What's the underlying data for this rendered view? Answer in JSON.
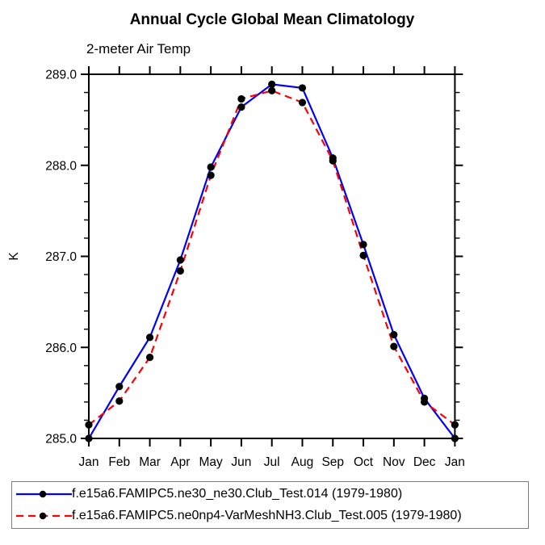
{
  "chart_data": {
    "type": "line",
    "title": "Annual Cycle Global Mean Climatology",
    "subtitle": "2-meter Air Temp",
    "ylabel": "K",
    "xlabel": "",
    "categories": [
      "Jan",
      "Feb",
      "Mar",
      "Apr",
      "May",
      "Jun",
      "Jul",
      "Aug",
      "Sep",
      "Oct",
      "Nov",
      "Dec",
      "Jan"
    ],
    "ylim": [
      285.0,
      289.0
    ],
    "ytick_interval": 1.0,
    "yminor_interval": 0.2,
    "ytick_labels": [
      "285.0",
      "286.0",
      "287.0",
      "288.0",
      "289.0"
    ],
    "grid": false,
    "legend_position": "bottom",
    "series": [
      {
        "name": "f.e15a6.FAMIPC5.ne30_ne30.Club_Test.014 (1979-1980)",
        "color": "#0000ff",
        "style": "solid",
        "marker": "circle",
        "marker_color": "#000000",
        "values": [
          285.0,
          285.57,
          286.11,
          286.96,
          287.98,
          288.64,
          288.89,
          288.85,
          288.08,
          287.13,
          286.14,
          285.44,
          285.0
        ]
      },
      {
        "name": "f.e15a6.FAMIPC5.ne0np4-VarMeshNH3.Club_Test.005 (1979-1980)",
        "color": "#ff0000",
        "style": "dashed",
        "marker": "circle",
        "marker_color": "#000000",
        "values": [
          285.15,
          285.41,
          285.89,
          286.84,
          287.89,
          288.73,
          288.82,
          288.69,
          288.05,
          287.01,
          286.01,
          285.4,
          285.15
        ]
      }
    ]
  }
}
